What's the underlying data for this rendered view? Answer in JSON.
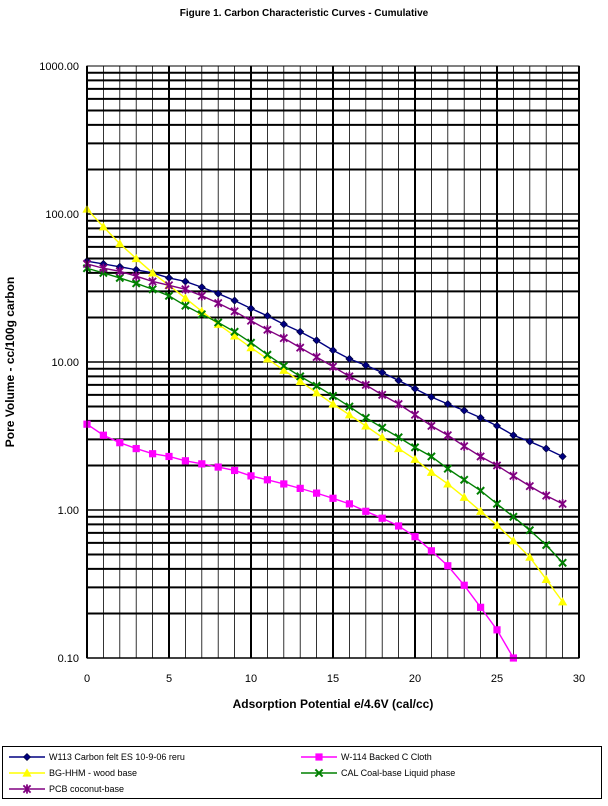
{
  "chart_data": {
    "type": "line",
    "title": "Figure 1. Carbon Characteristic Curves - Cumulative",
    "xlabel": "Adsorption Potential e/4.6V (cal/cc)",
    "ylabel": "Pore Volume - cc/100g carbon",
    "xlim": [
      0,
      30
    ],
    "ylim": [
      0.1,
      1000
    ],
    "yscale": "log",
    "x_ticks": [
      "0",
      "5",
      "10",
      "15",
      "20",
      "25",
      "30"
    ],
    "y_ticks": [
      "0.10",
      "1.00",
      "10.00",
      "100.00",
      "1000.00"
    ],
    "grid": true,
    "legend_position": "bottom",
    "series": [
      {
        "name": "W113 Carbon felt ES 10-9-06 reru",
        "color": "#000080",
        "marker": "diamond",
        "x": [
          0,
          1,
          2,
          3,
          4,
          5,
          6,
          7,
          8,
          9,
          10,
          11,
          12,
          13,
          14,
          15,
          16,
          17,
          18,
          19,
          20,
          21,
          22,
          23,
          24,
          25,
          26,
          27,
          28,
          29
        ],
        "y": [
          48,
          46,
          44,
          42,
          40,
          37,
          35,
          32,
          29,
          26,
          23,
          20.5,
          18,
          16,
          14,
          12,
          10.5,
          9.5,
          8.5,
          7.5,
          6.6,
          5.8,
          5.2,
          4.7,
          4.2,
          3.7,
          3.2,
          2.9,
          2.6,
          2.3
        ]
      },
      {
        "name": "W-114 Backed C Cloth",
        "color": "#ff00ff",
        "marker": "square",
        "x": [
          0,
          1,
          2,
          3,
          4,
          5,
          6,
          7,
          8,
          9,
          10,
          11,
          12,
          13,
          14,
          15,
          16,
          17,
          18,
          19,
          20,
          21,
          22,
          23,
          24,
          25,
          26
        ],
        "y": [
          3.8,
          3.2,
          2.85,
          2.6,
          2.4,
          2.3,
          2.15,
          2.05,
          1.95,
          1.85,
          1.7,
          1.6,
          1.5,
          1.4,
          1.3,
          1.2,
          1.1,
          0.98,
          0.88,
          0.78,
          0.66,
          0.53,
          0.42,
          0.31,
          0.22,
          0.155,
          0.1
        ]
      },
      {
        "name": "BG-HHM - wood base",
        "color": "#ffff00",
        "marker": "triangle",
        "x": [
          0,
          1,
          2,
          3,
          4,
          5,
          6,
          7,
          8,
          9,
          10,
          11,
          12,
          13,
          14,
          15,
          16,
          17,
          18,
          19,
          20,
          21,
          22,
          23,
          24,
          25,
          26,
          27,
          28,
          29
        ],
        "y": [
          108,
          82,
          63,
          50,
          40,
          33,
          27,
          22,
          18,
          15,
          12.5,
          10.5,
          8.8,
          7.4,
          6.2,
          5.2,
          4.4,
          3.7,
          3.1,
          2.6,
          2.2,
          1.8,
          1.5,
          1.22,
          0.98,
          0.79,
          0.62,
          0.48,
          0.34,
          0.24
        ]
      },
      {
        "name": "CAL Coal-base Liquid phase",
        "color": "#008000",
        "marker": "x",
        "x": [
          0,
          1,
          2,
          3,
          4,
          5,
          6,
          7,
          8,
          9,
          10,
          11,
          12,
          13,
          14,
          15,
          16,
          17,
          18,
          19,
          20,
          21,
          22,
          23,
          24,
          25,
          26,
          27,
          28,
          29
        ],
        "y": [
          43,
          40,
          37,
          34,
          31,
          28,
          24,
          21,
          18.5,
          16,
          13.5,
          11.2,
          9.4,
          8,
          6.9,
          5.9,
          5,
          4.2,
          3.6,
          3.1,
          2.65,
          2.3,
          1.9,
          1.6,
          1.35,
          1.1,
          0.9,
          0.73,
          0.58,
          0.44
        ]
      },
      {
        "name": "PCB coconut-base",
        "color": "#800080",
        "marker": "star",
        "x": [
          0,
          1,
          2,
          3,
          4,
          5,
          6,
          7,
          8,
          9,
          10,
          11,
          12,
          13,
          14,
          15,
          16,
          17,
          18,
          19,
          20,
          21,
          22,
          23,
          24,
          25,
          26,
          27,
          28,
          29
        ],
        "y": [
          46,
          43,
          41,
          38,
          35,
          33,
          31,
          28,
          25,
          22,
          19,
          16.5,
          14.5,
          12.5,
          10.8,
          9.3,
          8,
          7,
          6,
          5.2,
          4.4,
          3.7,
          3.2,
          2.7,
          2.3,
          2,
          1.7,
          1.45,
          1.25,
          1.1
        ]
      }
    ]
  }
}
